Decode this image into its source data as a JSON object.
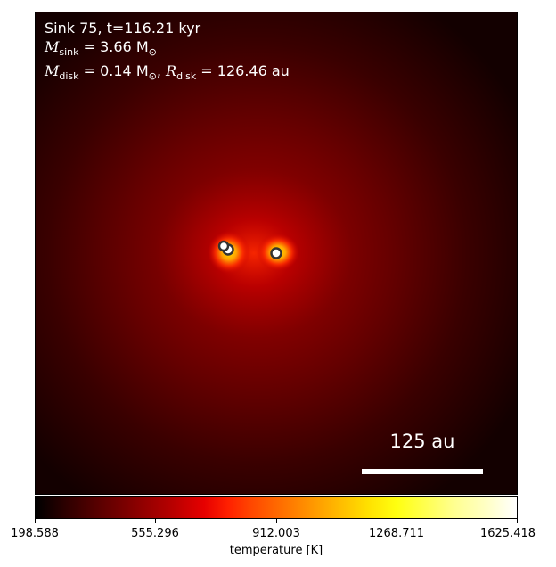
{
  "annotation": {
    "sink_line": "Sink 75, t=116.21 kyr",
    "msink_symbol": "M",
    "msink_sub": "sink",
    "msink_value": " = 3.66 M",
    "msink_unit_sub": "⊙",
    "mdisk_symbol": "M",
    "mdisk_sub": "disk",
    "mdisk_value": " = 0.14 M",
    "mdisk_unit_sub": "⊙",
    "rdisk_sep": ", ",
    "rdisk_symbol": "R",
    "rdisk_sub": "disk",
    "rdisk_value": " = 126.46 au"
  },
  "scale_bar": {
    "label": "125 au"
  },
  "colorbar": {
    "label": "temperature [K]",
    "ticks": [
      "198.588",
      "555.296",
      "912.003",
      "1268.711",
      "1625.418"
    ],
    "colormap": "hot"
  },
  "image": {
    "colors": {
      "background_edge": "#160000",
      "dark_red": "#4a0000",
      "red": "#a00000",
      "bright": "#ff2000",
      "hot": "#ffd000",
      "marker_fill": "#ffffff",
      "marker_edge": "#333333"
    }
  }
}
